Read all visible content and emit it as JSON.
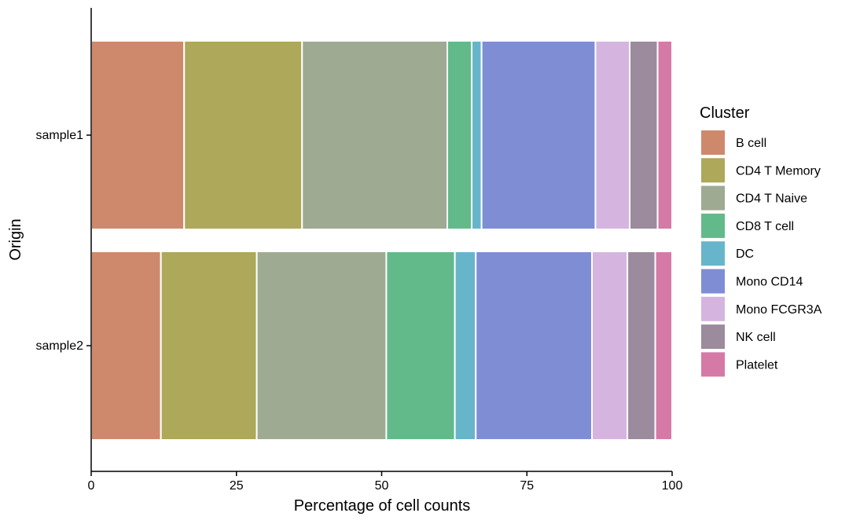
{
  "chart_data": {
    "type": "bar",
    "orientation": "horizontal",
    "stacked": true,
    "categories": [
      "sample1",
      "sample2"
    ],
    "xlabel": "Percentage of cell counts",
    "ylabel": "Origin",
    "xlim": [
      0,
      100
    ],
    "xticks": [
      "0",
      "25",
      "50",
      "75",
      "100"
    ],
    "grid": false,
    "legend": {
      "title": "Cluster",
      "placement": "right"
    },
    "series": [
      {
        "name": "B cell",
        "color": "#CE896D",
        "values": [
          16.0,
          12.0
        ]
      },
      {
        "name": "CD4 T Memory",
        "color": "#ADA85A",
        "values": [
          20.3,
          16.5
        ]
      },
      {
        "name": "CD4 T Naive",
        "color": "#9EAA92",
        "values": [
          25.0,
          22.3
        ]
      },
      {
        "name": "CD8 T cell",
        "color": "#62BA8B",
        "values": [
          4.2,
          11.8
        ]
      },
      {
        "name": "DC",
        "color": "#67B5CB",
        "values": [
          1.7,
          3.6
        ]
      },
      {
        "name": "Mono CD14",
        "color": "#7F8ED4",
        "values": [
          19.6,
          20.0
        ]
      },
      {
        "name": "Mono FCGR3A",
        "color": "#D5B5E0",
        "values": [
          5.9,
          6.1
        ]
      },
      {
        "name": "NK cell",
        "color": "#9B8B9C",
        "values": [
          4.8,
          4.8
        ]
      },
      {
        "name": "Platelet",
        "color": "#D57AA6",
        "values": [
          2.5,
          2.9
        ]
      }
    ]
  }
}
